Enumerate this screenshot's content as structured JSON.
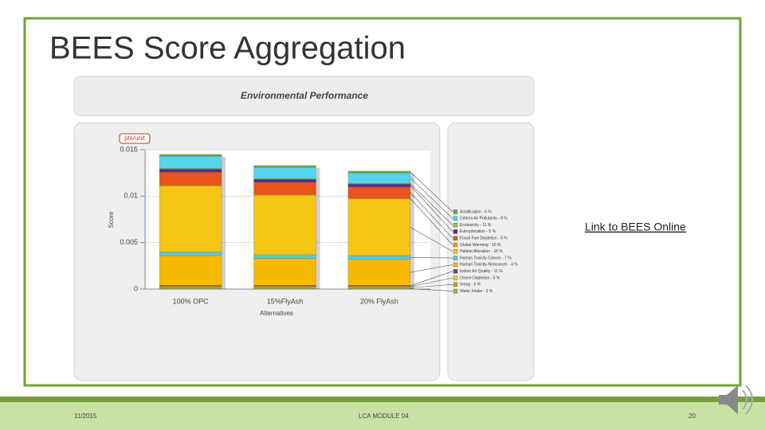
{
  "slide": {
    "title": "BEES Score Aggregation",
    "link": "Link to BEES Online",
    "footer": {
      "date": "11/2015",
      "module": "LCA MODULE 04",
      "page": "20"
    }
  },
  "chart_data": {
    "type": "bar",
    "stacked": true,
    "title": "Environmental Performance",
    "unit_label": "pts/unit",
    "y_label": "Score",
    "x_label": "Alternatives",
    "categories": [
      "100% OPC",
      "15%FlyAsh",
      "20% FlyAsh"
    ],
    "ylim": [
      0,
      0.015
    ],
    "yticks": [
      0,
      0.005,
      0.01,
      0.015
    ],
    "series": [
      {
        "name": "Acidification - 5 %",
        "color": "#6aa84f",
        "values": [
          0.0002,
          0.0002,
          0.0002
        ]
      },
      {
        "name": "Criteria Air Pollutants - 9 %",
        "color": "#56d4ee",
        "values": [
          0.0013,
          0.0012,
          0.0011
        ]
      },
      {
        "name": "Ecotoxicity - 11 %",
        "color": "#8bc34a",
        "values": [
          0.0001,
          0.0001,
          0.0001
        ]
      },
      {
        "name": "Eutrophication - 5 %",
        "color": "#5b2c8c",
        "values": [
          0.0003,
          0.0003,
          0.0003
        ]
      },
      {
        "name": "Fossil Fuel Depletion - 5 %",
        "color": "#e8541c",
        "values": [
          0.0014,
          0.0013,
          0.0012
        ]
      },
      {
        "name": "Global Warming - 16 %",
        "color": "#e0a800",
        "values": [
          0.0001,
          0.0001,
          0.0001
        ]
      },
      {
        "name": "Habitat Alteration - 16 %",
        "color": "#f6c414",
        "values": [
          0.0071,
          0.0064,
          0.0061
        ]
      },
      {
        "name": "Human Toxicity-Cancer - 7 %",
        "color": "#5bc8d8",
        "values": [
          0.0004,
          0.0004,
          0.0004
        ]
      },
      {
        "name": "Human Toxicity-Noncancer - 4 %",
        "color": "#f7b800",
        "values": [
          0.0032,
          0.0029,
          0.0028
        ]
      },
      {
        "name": "Indoor Air Quality - 11 %",
        "color": "#7b3f9e",
        "values": [
          0.0001,
          0.0001,
          0.0001
        ]
      },
      {
        "name": "Ozone Depletion - 5 %",
        "color": "#f0d000",
        "values": [
          0.0001,
          0.0001,
          0.0001
        ]
      },
      {
        "name": "Smog - 6 %",
        "color": "#f28c28",
        "values": [
          0.0001,
          0.0001,
          0.0001
        ]
      },
      {
        "name": "Water Intake - 3 %",
        "color": "#8fbc3f",
        "values": [
          0.0001,
          0.0001,
          0.0001
        ]
      }
    ]
  }
}
